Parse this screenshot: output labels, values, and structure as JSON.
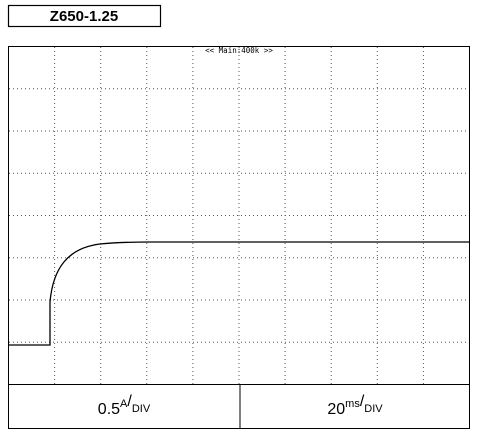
{
  "label": "Z650-1.25",
  "screen": {
    "header": "<< Main:400k >>"
  },
  "footer": {
    "left": {
      "value": "0.5",
      "unit": "A",
      "per": "DIV"
    },
    "right": {
      "value": "20",
      "unit": "ms",
      "per": "DIV"
    }
  }
}
